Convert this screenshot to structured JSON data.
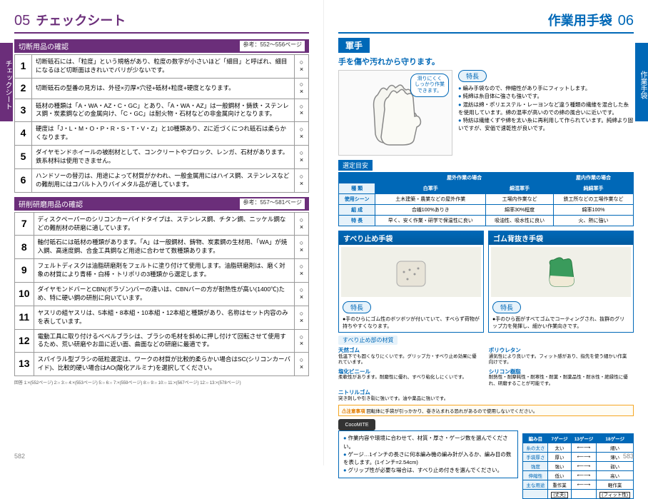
{
  "left": {
    "page_num": "05",
    "title": "チェックシート",
    "side_tab": "チェックシート",
    "section1": {
      "title": "切断用品の確認",
      "ref": "参考：552〜556ページ"
    },
    "checks1": [
      {
        "n": "1",
        "t": "切断砥石には、「粒度」という規格があり、粒度の数字が小さいほど「細目」と呼ばれ、細目になるほど切断面はきれいでバリが少ないです。"
      },
      {
        "n": "2",
        "t": "切断砥石の型番の見方は、外径×刃厚×穴径+砥材+粒度+硬度となります。"
      },
      {
        "n": "3",
        "t": "砥材の種類は「A・WA・AZ・C・GC」とあり、「A・WA・AZ」は一般鋼材・鋳鉄・ステンレス鋼・炭素鋼などの金属向け、「C・GC」は耐火物・石材などの非金属向けとなります。"
      },
      {
        "n": "4",
        "t": "硬度は「J・L・M・O・P・R・S・T・V・Z」と10種類あり、Zに近づくにつれ砥石は柔らかくなります。"
      },
      {
        "n": "5",
        "t": "ダイヤモンドホイールの被削材として、コンクリートやブロック、レンガ、石材があります。鉄系材料は使用できません。"
      },
      {
        "n": "6",
        "t": "ハンドソーの替刃は、用途によって材質がかわれ、一般金属用にはハイス鋼、ステンレスなどの難削用にはコバルト入りバイメタル品が適しています。"
      }
    ],
    "section2": {
      "title": "研削研磨用品の確認",
      "ref": "参考：557〜581ページ"
    },
    "checks2": [
      {
        "n": "7",
        "t": "ディスクペーパーのシリコンカーバイドタイプは、ステンレス鋼、チタン鋼、ニッケル鋼などの難削材の研磨に適しています。"
      },
      {
        "n": "8",
        "t": "軸付砥石には砥材の種類があります。「A」は一般鋼材、鋳物、炭素鋼の生材用、「WA」が焼入鋼、高速度鋼、合金工具鋼など用途に合わせて数種類あります。"
      },
      {
        "n": "9",
        "t": "フェルトディスクは油脂研磨剤をフェルトに塗り付けて使用します。油脂研磨剤は、磨く対象の材質により青棒・白棒・トリポリの3種類から選定します。"
      },
      {
        "n": "10",
        "t": "ダイヤモンドバーとCBN(ボラゾン)バーの違いは、CBNバーの方が耐熱性が高い(1400℃)ため、特に硬い鋼の研削に向いています。"
      },
      {
        "n": "11",
        "t": "ヤスリの組ヤスリは、5本組・8本組・10本組・12本組と種類があり、名称はセット内容のみを表しています。"
      },
      {
        "n": "12",
        "t": "電動工具に取り付けるベベルブラシは、ブラシの毛材を斜めに押し付けて回転させて使用するため、荒い研磨やお皿に近い面、曲面などの研磨に最適です。"
      },
      {
        "n": "13",
        "t": "スパイラル型ブラシの砥粒選定は、ワークの材質が比較的柔らかい場合はSC(シリコンカーバイド)、比較的硬い場合はAO(酸化アルミナ)を選択してください。"
      }
    ],
    "footnote": "回答 1:×(552ページ) 2:○ 3:○ 4:×(553ページ) 5:○ 6:○ 7:×(559ページ) 8:○ 9:○ 10:○ 11:×(567ページ) 12:○ 13:×(578ページ)",
    "page_bottom": "582"
  },
  "right": {
    "page_num": "06",
    "title": "作業用手袋",
    "side_tab": "作業手袋",
    "sub_title": "軍手",
    "tagline": "手を傷や汚れから守ります。",
    "callout": "滑りにくく\nしっかり作業\nできます。",
    "feature_label": "特長",
    "features": [
      "編み手袋なので、伸縮性があり手にフィットします。",
      "純綿は糸自体に強さも強いです。",
      "混紡は綿・ポリエステル・レーヨンなど違う種類の繊維を混合した糸を使用しています。綿の混率が高いのでの綿の風合いに近いです。",
      "特紡は繊維くずや綿を太い糸に再利用して作られています。純綿より固いですが、安価で速乾性が良いです。"
    ],
    "select_label": "選定目安",
    "select_headers": {
      "outdoor": "屋外作業の場合",
      "indoor": "屋内作業の場合"
    },
    "select_table": {
      "cols": [
        "種 類",
        "白軍手",
        "綿混軍手",
        "純綿軍手"
      ],
      "rows": [
        [
          "使用シーン",
          "土木建築・農業などの屋外作業",
          "工場内作業など",
          "鉄工所などの工場作業など"
        ],
        [
          "組 成",
          "合繊100%ありき",
          "綿率30%程度",
          "綿率100%"
        ],
        [
          "特 長",
          "早く、安く作業・研学で保温性に良い",
          "吸油性、吸水性に良い",
          "火、熱に強い"
        ]
      ]
    },
    "box1": {
      "title": "すべり止め手袋",
      "label": "特長",
      "text": "●手のひらにゴム性のボツボツが付いていて、すべらず荷物が持ちやすくなります。"
    },
    "box2": {
      "title": "ゴム背抜き手袋",
      "label": "特長",
      "text": "●手のひら面がすべてゴムでコーティングされ、抜群のグリップ力を発揮し、細かい作業向きです。"
    },
    "material_title": "すべり止め部の材質",
    "materials": [
      {
        "name": "天然ゴム",
        "desc": "低温下でも固くなりにくいです。グリップ力・すべり止め効果に優れています。"
      },
      {
        "name": "ポリウレタン",
        "desc": "通気性により良いです。フィット感があり、指先を使う細かい作業向けです。"
      },
      {
        "name": "塩化ビニール",
        "desc": "柔軟性があります。耐磨性に優れ、すべり粘化しにくいです。"
      },
      {
        "name": "シリコン樹脂",
        "desc": "耐熱性・耐摩耗性・耐寒性・耐薬・耐薬品性・耐水性・絶縁性に優れ、研磨することが可能です。"
      },
      {
        "name": "ニトリルゴム",
        "desc": "突き刺しや引き裂に強いです。油や薬品に強いです。"
      }
    ],
    "warning": {
      "title": "⚠注意事項",
      "text": "回転体に手袋が引っかかり、巻き込まれる恐れがあるので使用しないでください。"
    },
    "logo": "CocoMITE",
    "tips": [
      "作業内容や環境に合わせて、材質・厚さ・ゲージ数を選んでください。",
      "ゲージ…1インチの長さに何本編み機の編み針が入るか、編み目の数を表します。(1インチ=2.54cm)",
      "グリップ性が必要な場合は、すべり止め付きを選んでください。"
    ],
    "gauge": {
      "header": [
        "編み目",
        "7ゲージ",
        "13ゲージ",
        "18ゲージ"
      ],
      "rows": [
        [
          "糸の太さ",
          "太い",
          "⟵⟶",
          "細い"
        ],
        [
          "手袋厚さ",
          "厚い",
          "⟵⟶",
          "薄い"
        ],
        [
          "強度",
          "強い",
          "⟵⟶",
          "弱い"
        ],
        [
          "伸縮性",
          "低い",
          "⟵⟶",
          "高い"
        ],
        [
          "主な用途",
          "重作業",
          "⟵⟶",
          "軽作業"
        ]
      ],
      "footer": [
        "(丈夫)",
        "",
        "(フィット性)"
      ]
    },
    "page_bottom": "583"
  },
  "colors": {
    "purple": "#6b2e7a",
    "blue": "#0068b7",
    "light_blue": "#e6f2fa",
    "warn": "#f5a623"
  }
}
